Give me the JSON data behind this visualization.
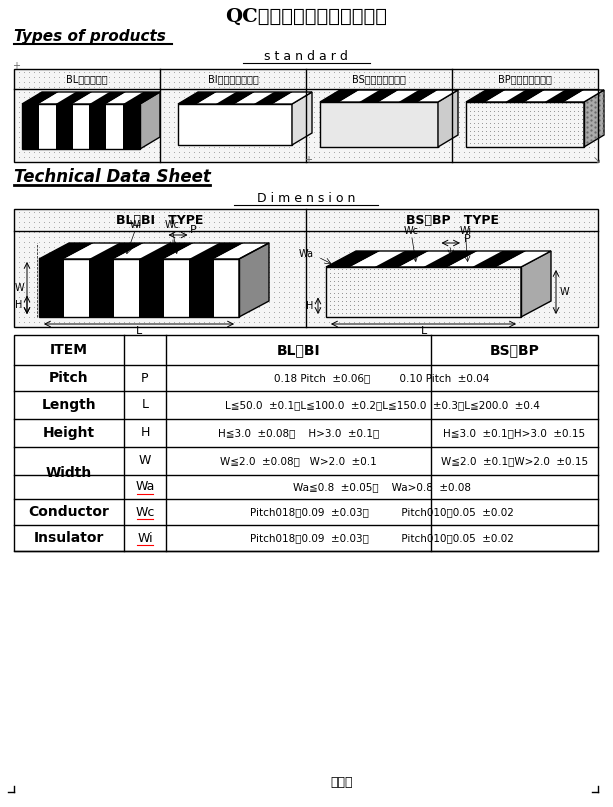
{
  "title": "QC工程表（斌馬條蕣）附件",
  "section1_title": "Types of products",
  "standard_label": "s t a n d a r d",
  "product_labels": [
    "BL（全導電）",
    "BI（兩面絕緣漆）",
    "BS（兩面絕緣膠）",
    "BP（兩面絕泡膠）"
  ],
  "section2_title": "Technical Data Sheet",
  "dimension_label": "D i m e n s i o n",
  "bl_bi_type": "BL 、BI   TYPE",
  "bs_bp_type": "BS 、BP   TYPE",
  "bg_color": "#ffffff"
}
